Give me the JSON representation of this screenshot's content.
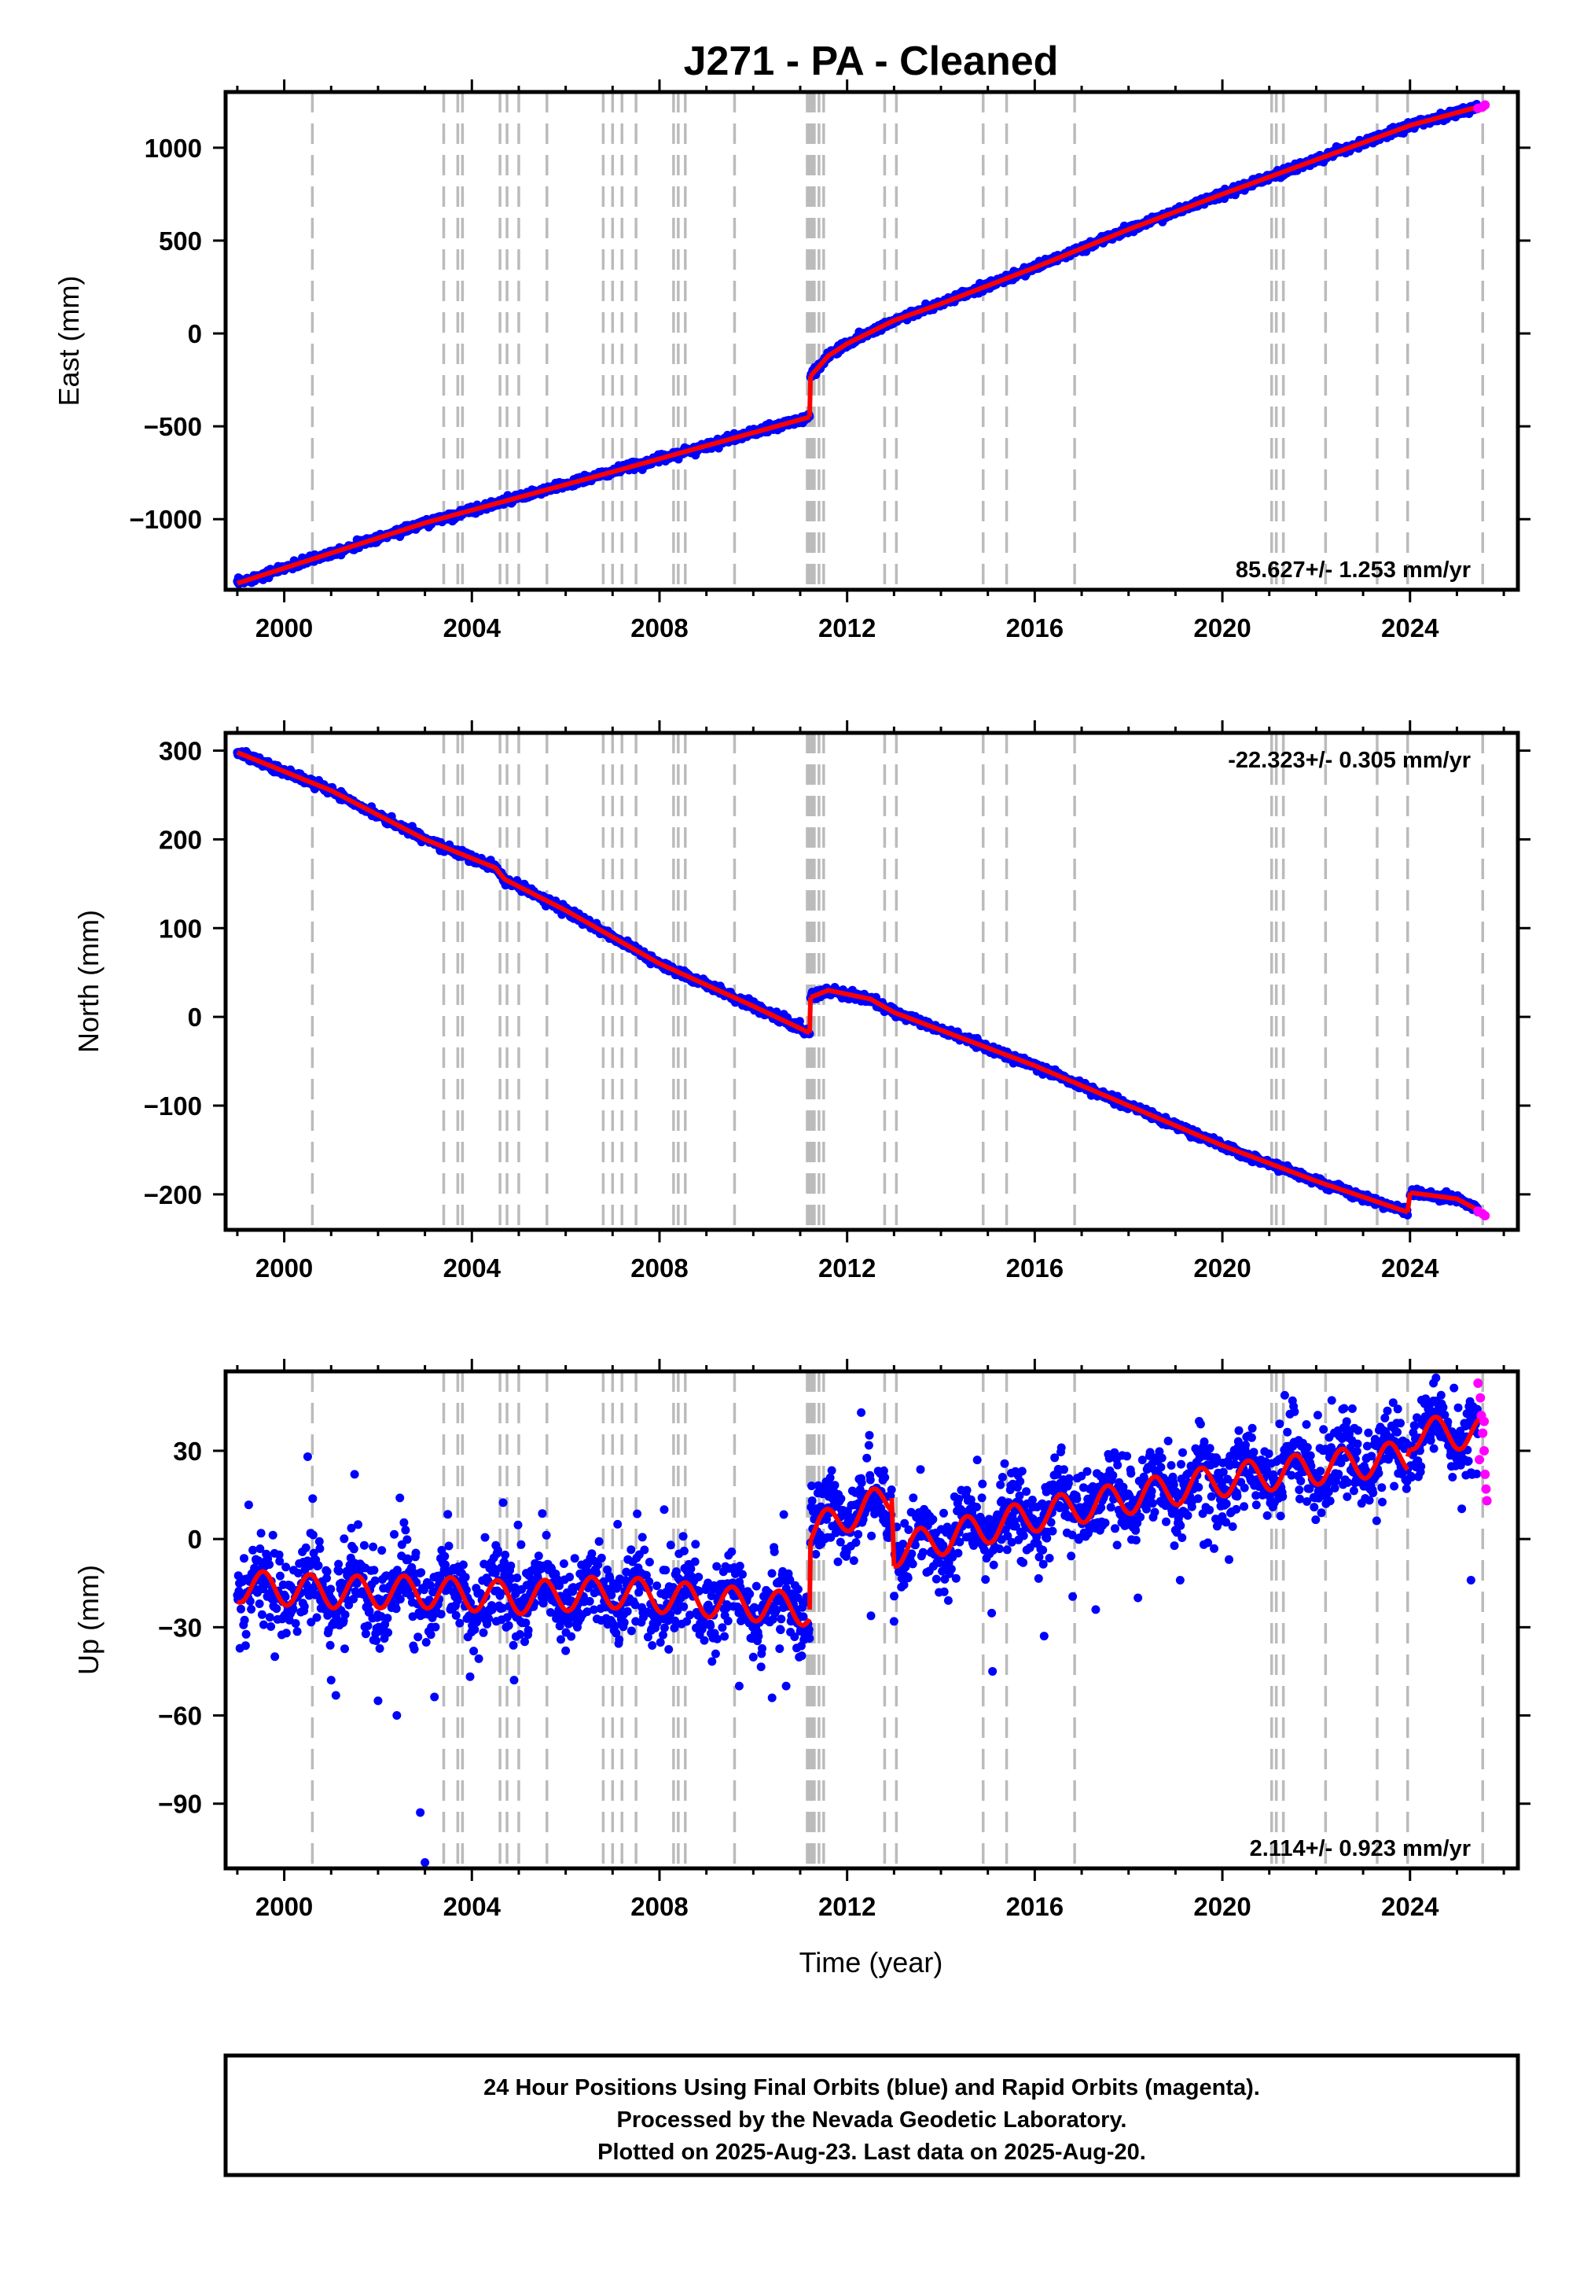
{
  "title": "J271  - PA - Cleaned",
  "x_axis_label": "Time (year)",
  "footer": {
    "line1": "24 Hour Positions Using Final Orbits (blue) and Rapid Orbits (magenta).",
    "line2": "Processed by the Nevada Geodetic Laboratory.",
    "line3": "Plotted on 2025-Aug-23. Last data on 2025-Aug-20."
  },
  "colors": {
    "final_orbits": "#0000ff",
    "rapid_orbits": "#ff00ff",
    "model": "#ff0000",
    "event_lines": "#bbbbbb"
  },
  "chart_data": [
    {
      "type": "scatter",
      "component": "east",
      "ylabel": "East (mm)",
      "xlim": [
        1998.75,
        2026.3
      ],
      "ylim": [
        -1380,
        1300
      ],
      "xticks": [
        2000,
        2004,
        2008,
        2012,
        2016,
        2020,
        2024
      ],
      "yticks": [
        -1000,
        -500,
        0,
        500,
        1000
      ],
      "xtick_labels": [
        "2000",
        "2004",
        "2008",
        "2012",
        "2016",
        "2020",
        "2024"
      ],
      "ytick_labels": [
        "−1000",
        "−500",
        "0",
        "500",
        "1000"
      ],
      "rate_label": "85.627+/- 1.253 mm/yr",
      "rate_position": "bottom-right",
      "model_knots": [
        [
          1999.0,
          -1345
        ],
        [
          2003.0,
          -1020
        ],
        [
          2007.0,
          -745
        ],
        [
          2011.2,
          -450
        ],
        [
          2011.22,
          -230
        ],
        [
          2011.6,
          -120
        ],
        [
          2012.0,
          -55
        ],
        [
          2013.0,
          70
        ],
        [
          2014.0,
          160
        ],
        [
          2016.0,
          355
        ],
        [
          2018.0,
          560
        ],
        [
          2020.0,
          750
        ],
        [
          2022.0,
          935
        ],
        [
          2023.95,
          1115
        ],
        [
          2024.0,
          1120
        ],
        [
          2025.6,
          1230
        ]
      ],
      "model_segments": [
        [
          0,
          3
        ],
        [
          4,
          15
        ]
      ],
      "scatter_noise": 10,
      "rapid_points": [
        [
          2025.45,
          1212
        ],
        [
          2025.55,
          1220
        ],
        [
          2025.6,
          1230
        ]
      ]
    },
    {
      "type": "scatter",
      "component": "north",
      "ylabel": "North (mm)",
      "xlim": [
        1998.75,
        2026.3
      ],
      "ylim": [
        -240,
        320
      ],
      "xticks": [
        2000,
        2004,
        2008,
        2012,
        2016,
        2020,
        2024
      ],
      "yticks": [
        -200,
        -100,
        0,
        100,
        200,
        300
      ],
      "xtick_labels": [
        "2000",
        "2004",
        "2008",
        "2012",
        "2016",
        "2020",
        "2024"
      ],
      "ytick_labels": [
        "−200",
        "−100",
        "0",
        "100",
        "200",
        "300"
      ],
      "rate_label": "-22.323+/- 0.305 mm/yr",
      "rate_position": "top-right",
      "model_knots": [
        [
          1999.0,
          298
        ],
        [
          2001.0,
          255
        ],
        [
          2003.0,
          200
        ],
        [
          2004.5,
          168
        ],
        [
          2004.7,
          155
        ],
        [
          2006.0,
          120
        ],
        [
          2008.0,
          60
        ],
        [
          2010.0,
          12
        ],
        [
          2011.2,
          -18
        ],
        [
          2011.22,
          22
        ],
        [
          2011.6,
          30
        ],
        [
          2012.5,
          20
        ],
        [
          2013.0,
          5
        ],
        [
          2016.0,
          -55
        ],
        [
          2018.0,
          -100
        ],
        [
          2020.0,
          -145
        ],
        [
          2022.0,
          -185
        ],
        [
          2023.95,
          -220
        ],
        [
          2024.0,
          -198
        ],
        [
          2025.0,
          -205
        ],
        [
          2025.6,
          -222
        ]
      ],
      "model_segments": [
        [
          0,
          8
        ],
        [
          9,
          17
        ],
        [
          18,
          20
        ]
      ],
      "scatter_noise": 2.2,
      "rapid_points": [
        [
          2025.45,
          -219
        ],
        [
          2025.55,
          -222
        ],
        [
          2025.6,
          -224
        ]
      ]
    },
    {
      "type": "scatter",
      "component": "up",
      "ylabel": "Up (mm)",
      "xlim": [
        1998.75,
        2026.3
      ],
      "ylim": [
        -112,
        57
      ],
      "xticks": [
        2000,
        2004,
        2008,
        2012,
        2016,
        2020,
        2024
      ],
      "yticks": [
        -90,
        -60,
        -30,
        0,
        30
      ],
      "xtick_labels": [
        "2000",
        "2004",
        "2008",
        "2012",
        "2016",
        "2020",
        "2024"
      ],
      "ytick_labels": [
        "−90",
        "−60",
        "−30",
        "0",
        "30"
      ],
      "rate_label": "2.114+/- 0.923 mm/yr",
      "rate_position": "bottom-right",
      "model_knots": [
        [
          1999.0,
          -16
        ],
        [
          2001.0,
          -18
        ],
        [
          2003.0,
          -18
        ],
        [
          2005.0,
          -20
        ],
        [
          2007.0,
          -18
        ],
        [
          2009.0,
          -21
        ],
        [
          2011.2,
          -24
        ],
        [
          2011.22,
          2
        ],
        [
          2012.0,
          8
        ],
        [
          2012.95,
          14
        ],
        [
          2013.0,
          -4
        ],
        [
          2014.0,
          0
        ],
        [
          2016.0,
          8
        ],
        [
          2018.0,
          14
        ],
        [
          2020.0,
          20
        ],
        [
          2022.0,
          24
        ],
        [
          2023.95,
          28
        ],
        [
          2024.0,
          36
        ],
        [
          2025.6,
          36
        ]
      ],
      "model_segments": [
        [
          0,
          6
        ],
        [
          7,
          9
        ],
        [
          10,
          16
        ],
        [
          17,
          18
        ]
      ],
      "seasonal_amplitude": 5.5,
      "scatter_noise": 6.5,
      "outliers": [
        [
          1999.8,
          -40
        ],
        [
          2000.5,
          28
        ],
        [
          2001.0,
          -48
        ],
        [
          2001.5,
          22
        ],
        [
          2002.0,
          -55
        ],
        [
          2002.4,
          -60
        ],
        [
          2002.9,
          -93
        ],
        [
          2003.0,
          -110
        ],
        [
          2004.9,
          -48
        ],
        [
          2006.0,
          -38
        ],
        [
          2008.1,
          10
        ],
        [
          2009.7,
          -50
        ],
        [
          2010.4,
          -54
        ],
        [
          2010.7,
          -50
        ],
        [
          2012.3,
          43
        ],
        [
          2013.0,
          -28
        ],
        [
          2015.1,
          -45
        ],
        [
          2016.2,
          -33
        ],
        [
          2017.3,
          -24
        ],
        [
          2018.2,
          -20
        ],
        [
          2019.1,
          -14
        ],
        [
          2025.3,
          -14
        ],
        [
          2024.5,
          53
        ]
      ],
      "rapid_points": [
        [
          2025.45,
          53
        ],
        [
          2025.5,
          48
        ],
        [
          2025.52,
          42
        ],
        [
          2025.55,
          36
        ],
        [
          2025.58,
          30
        ],
        [
          2025.6,
          22
        ],
        [
          2025.62,
          17
        ],
        [
          2025.64,
          13
        ],
        [
          2025.48,
          27
        ],
        [
          2025.58,
          40
        ]
      ]
    }
  ],
  "event_years": [
    2000.6,
    2003.4,
    2003.7,
    2003.8,
    2004.6,
    2004.75,
    2005.0,
    2005.6,
    2006.8,
    2007.0,
    2007.2,
    2007.5,
    2008.3,
    2008.4,
    2008.55,
    2009.6,
    2011.15,
    2011.2,
    2011.25,
    2011.3,
    2011.4,
    2011.5,
    2012.8,
    2013.05,
    2014.9,
    2015.4,
    2016.85,
    2021.05,
    2021.15,
    2021.3,
    2022.2,
    2023.3,
    2023.95,
    2025.55
  ]
}
